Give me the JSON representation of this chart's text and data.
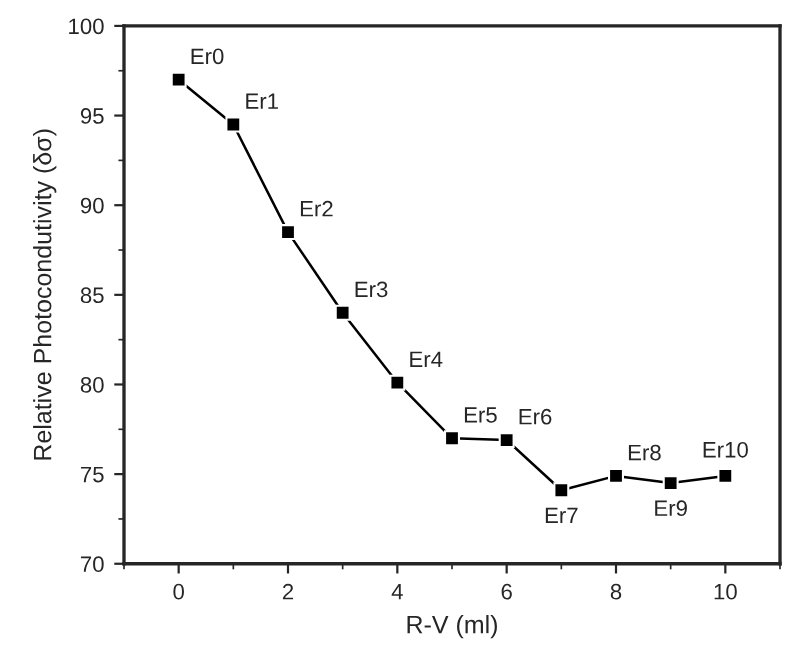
{
  "chart_data": {
    "type": "line",
    "xlabel": "R-V (ml)",
    "ylabel": "Relative Photocondutivity (δσ)",
    "x": [
      0,
      1,
      2,
      3,
      4,
      5,
      6,
      7,
      8,
      9,
      10
    ],
    "series": [
      {
        "color": "#000000",
        "values": [
          97,
          94.5,
          88.5,
          84,
          80.1,
          77,
          76.9,
          74.1,
          74.9,
          74.5,
          74.9
        ]
      }
    ],
    "xlim": [
      -1,
      11
    ],
    "xticks": [
      0,
      2,
      4,
      6,
      8,
      10
    ],
    "ylim": [
      70,
      100
    ],
    "yticks": [
      70,
      75,
      80,
      85,
      90,
      95,
      100
    ],
    "marker": "square",
    "line_style": "solid",
    "grid": false,
    "legend": false,
    "annotations": [
      {
        "text": "Er0",
        "x": 0,
        "y": 97
      },
      {
        "text": "Er1",
        "x": 1,
        "y": 94.5
      },
      {
        "text": "Er2",
        "x": 2,
        "y": 88.5
      },
      {
        "text": "Er3",
        "x": 3,
        "y": 84
      },
      {
        "text": "Er4",
        "x": 4,
        "y": 80.1
      },
      {
        "text": "Er5",
        "x": 5,
        "y": 77
      },
      {
        "text": "Er6",
        "x": 6,
        "y": 76.9
      },
      {
        "text": "Er7",
        "x": 7,
        "y": 74.1
      },
      {
        "text": "Er8",
        "x": 8,
        "y": 74.9
      },
      {
        "text": "Er9",
        "x": 9,
        "y": 74.5
      },
      {
        "text": "Er10",
        "x": 10,
        "y": 74.9
      }
    ]
  }
}
